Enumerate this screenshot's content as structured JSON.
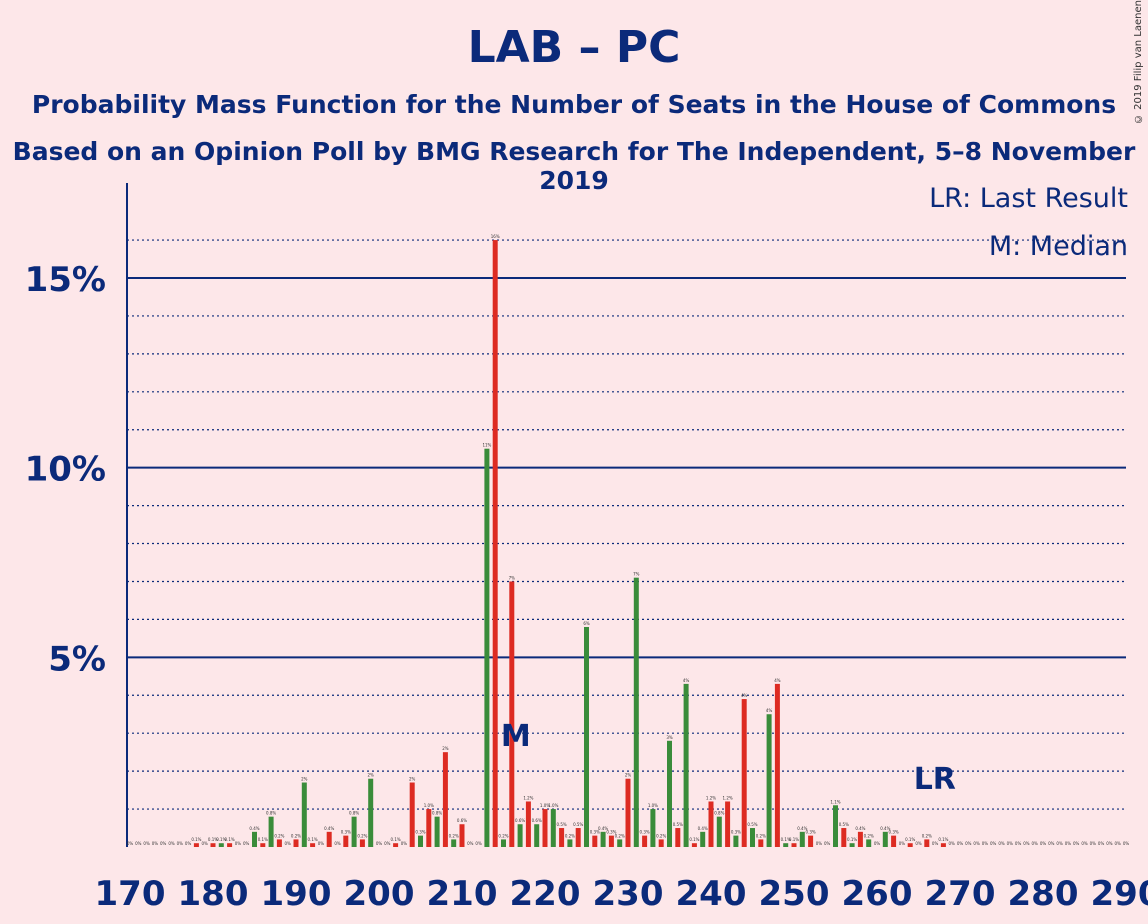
{
  "title": "LAB – PC",
  "subtitle1": "Probability Mass Function for the Number of Seats in the House of Commons",
  "subtitle2": "Based on an Opinion Poll by BMG Research for The Independent, 5–8 November 2019",
  "copyright": "© 2019 Filip van Laenen",
  "legend": {
    "last_result": "LR: Last Result",
    "median": "M: Median"
  },
  "colors": {
    "background": "#fde7e9",
    "axis": "#0b2a7a",
    "red": "#dd2b22",
    "green": "#3a8c3a"
  },
  "chart_data": {
    "type": "bar",
    "xlim": [
      170,
      290
    ],
    "ylim": [
      0,
      17
    ],
    "xticks": [
      "170",
      "180",
      "190",
      "200",
      "210",
      "220",
      "230",
      "240",
      "250",
      "260",
      "270",
      "280",
      "290"
    ],
    "yticks": [
      "5%",
      "10%",
      "15%"
    ],
    "median_seat": 216,
    "median_label": "M",
    "last_result_seat": 266,
    "last_result_label": "LR",
    "x": [
      170,
      171,
      172,
      173,
      174,
      175,
      176,
      177,
      178,
      179,
      180,
      181,
      182,
      183,
      184,
      185,
      186,
      187,
      188,
      189,
      190,
      191,
      192,
      193,
      194,
      195,
      196,
      197,
      198,
      199,
      200,
      201,
      202,
      203,
      204,
      205,
      206,
      207,
      208,
      209,
      210,
      211,
      212,
      213,
      214,
      215,
      216,
      217,
      218,
      219,
      220,
      221,
      222,
      223,
      224,
      225,
      226,
      227,
      228,
      229,
      230,
      231,
      232,
      233,
      234,
      235,
      236,
      237,
      238,
      239,
      240,
      241,
      242,
      243,
      244,
      245,
      246,
      247,
      248,
      249,
      250,
      251,
      252,
      253,
      254,
      255,
      256,
      257,
      258,
      259,
      260,
      261,
      262,
      263,
      264,
      265,
      266,
      267,
      268,
      269,
      270,
      271,
      272,
      273,
      274,
      275,
      276,
      277,
      278,
      279,
      280,
      281,
      282,
      283,
      284,
      285,
      286,
      287,
      288,
      289,
      290
    ],
    "values": [
      0,
      0,
      0,
      0,
      0,
      0,
      0,
      0,
      0.1,
      0,
      0.1,
      0.1,
      0.1,
      0,
      0,
      0.4,
      0.1,
      0.8,
      0.2,
      0,
      0.2,
      1.7,
      0.1,
      0,
      0.4,
      0,
      0.3,
      0.8,
      0.2,
      1.8,
      0,
      0,
      0.1,
      0,
      1.7,
      0.3,
      1.0,
      0.8,
      2.5,
      0.2,
      0.6,
      0,
      0,
      10.5,
      16,
      0.2,
      7,
      0.6,
      1.2,
      0.6,
      1.0,
      1.0,
      0.5,
      0.2,
      0.5,
      5.8,
      0.3,
      0.4,
      0.3,
      0.2,
      1.8,
      7.1,
      0.3,
      1.0,
      0.2,
      2.8,
      0.5,
      4.3,
      0.1,
      0.4,
      1.2,
      0.8,
      1.2,
      0.3,
      3.9,
      0.5,
      0.2,
      3.5,
      4.3,
      0.1,
      0.1,
      0.4,
      0.3,
      0,
      0,
      1.1,
      0.5,
      0.1,
      0.4,
      0.2,
      0,
      0.4,
      0.3,
      0,
      0.1,
      0,
      0.2,
      0,
      0.1,
      0,
      0,
      0,
      0,
      0,
      0,
      0,
      0,
      0,
      0,
      0,
      0,
      0,
      0,
      0,
      0,
      0,
      0,
      0,
      0,
      0,
      0
    ],
    "labels": [
      "0%",
      "0%",
      "0%",
      "0%",
      "0%",
      "0%",
      "0%",
      "0%",
      "0.1%",
      "0%",
      "0.1%",
      "0.1%",
      "0.1%",
      "0%",
      "0%",
      "0.4%",
      "0.1%",
      "0.8%",
      "0.2%",
      "0%",
      "0.2%",
      "2%",
      "0.1%",
      "0%",
      "0.4%",
      "0%",
      "0.3%",
      "0.8%",
      "0.2%",
      "2%",
      "0%",
      "0%",
      "0.1%",
      "0%",
      "2%",
      "0.3%",
      "1.0%",
      "0.8%",
      "2%",
      "0.2%",
      "0.6%",
      "0%",
      "0%",
      "11%",
      "16%",
      "0.2%",
      "7%",
      "0.6%",
      "1.2%",
      "0.6%",
      "1.0%",
      "1.0%",
      "0.5%",
      "0.2%",
      "0.5%",
      "6%",
      "0.3%",
      "0.4%",
      "0.3%",
      "0.2%",
      "2%",
      "7%",
      "0.3%",
      "1.0%",
      "0.2%",
      "3%",
      "0.5%",
      "4%",
      "0.1%",
      "0.4%",
      "1.2%",
      "0.8%",
      "1.2%",
      "0.3%",
      "4%",
      "0.5%",
      "0.2%",
      "4%",
      "4%",
      "0.1%",
      "0.1%",
      "0.4%",
      "0.3%",
      "0%",
      "0%",
      "1.1%",
      "0.5%",
      "0.1%",
      "0.4%",
      "0.2%",
      "0%",
      "0.4%",
      "0.3%",
      "0%",
      "0.1%",
      "0%",
      "0.2%",
      "0%",
      "0.1%",
      "0%",
      "0%",
      "0%",
      "0%",
      "0%",
      "0%",
      "0%",
      "0%",
      "0%",
      "0%",
      "0%",
      "0%",
      "0%",
      "0%",
      "0%",
      "0%",
      "0%",
      "0%",
      "0%",
      "0%",
      "0%",
      "0%"
    ]
  }
}
